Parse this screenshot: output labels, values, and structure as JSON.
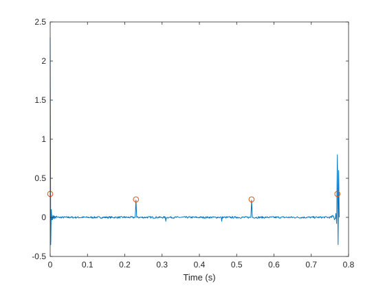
{
  "chart_data": {
    "type": "line",
    "title": "",
    "xlabel": "Time (s)",
    "ylabel": "",
    "xlim": [
      0,
      0.8
    ],
    "ylim": [
      -0.5,
      2.5
    ],
    "x_ticks": [
      0,
      0.1,
      0.2,
      0.3,
      0.4,
      0.5,
      0.6,
      0.7,
      0.8
    ],
    "x_tick_labels": [
      "0",
      "0.1",
      "0.2",
      "0.3",
      "0.4",
      "0.5",
      "0.6",
      "0.7",
      "0.8"
    ],
    "y_ticks": [
      -0.5,
      0,
      0.5,
      1,
      1.5,
      2,
      2.5
    ],
    "y_tick_labels": [
      "-0.5",
      "0",
      "0.5",
      "1",
      "1.5",
      "2",
      "2.5"
    ],
    "grid": false,
    "box": true,
    "colors": {
      "signal": "#0072bd",
      "peak_marker": "#d95319",
      "axis": "#262626"
    },
    "series": [
      {
        "kind": "line",
        "x": [
          0,
          0.0015,
          0.003,
          0.006,
          0.01,
          0.02,
          0.05,
          0.1,
          0.15,
          0.2,
          0.228,
          0.23,
          0.232,
          0.26,
          0.3,
          0.31,
          0.32,
          0.35,
          0.4,
          0.45,
          0.46,
          0.47,
          0.5,
          0.538,
          0.54,
          0.542,
          0.58,
          0.62,
          0.66,
          0.7,
          0.74,
          0.755,
          0.762,
          0.766,
          0.768,
          0.77,
          0.772,
          0.7735,
          0.775
        ],
        "y": [
          2.3,
          -0.35,
          0.1,
          -0.03,
          0.02,
          0.0,
          0.01,
          0.0,
          0.005,
          0.01,
          0.0,
          0.22,
          0.0,
          0.005,
          0.0,
          -0.05,
          0.0,
          0.0,
          0.0,
          0.005,
          -0.05,
          0.0,
          0.005,
          0.0,
          0.22,
          0.0,
          0.0,
          0.005,
          0.0,
          0.0,
          0.01,
          0.02,
          -0.03,
          0.05,
          -0.08,
          0.8,
          -0.35,
          0.6,
          0.0
        ]
      },
      {
        "kind": "markers",
        "marker": "circle",
        "x": [
          0,
          0.23,
          0.54,
          0.77
        ],
        "y": [
          0.3,
          0.23,
          0.23,
          0.3
        ]
      }
    ]
  }
}
